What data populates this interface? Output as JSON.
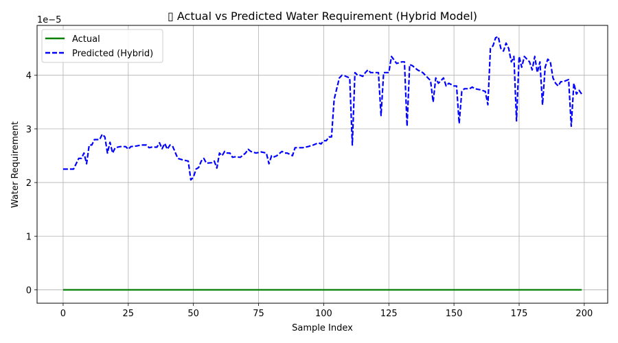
{
  "chart_data": {
    "type": "line",
    "title": "▯ Actual vs Predicted Water Requirement (Hybrid Model)",
    "xlabel": "Sample Index",
    "ylabel": "Water Requirement",
    "y_scale_label": "1e−5",
    "xlim": [
      -10,
      209
    ],
    "ylim": [
      -0.25,
      4.93
    ],
    "x_ticks": [
      0,
      25,
      50,
      75,
      100,
      125,
      150,
      175,
      200
    ],
    "y_ticks": [
      0,
      1,
      2,
      3,
      4
    ],
    "grid": true,
    "legend_position": "top-left",
    "series": [
      {
        "name": "Actual",
        "color": "#008000",
        "style": "solid",
        "x": [
          0,
          199
        ],
        "y": [
          0,
          0
        ]
      },
      {
        "name": "Predicted (Hybrid)",
        "color": "#0000ff",
        "style": "dashed",
        "x": [
          0,
          2,
          4,
          5,
          6,
          7,
          8,
          9,
          10,
          11,
          12,
          13,
          14,
          15,
          16,
          17,
          18,
          19,
          20,
          22,
          24,
          25,
          26,
          28,
          30,
          32,
          33,
          34,
          36,
          37,
          38,
          39,
          40,
          41,
          42,
          44,
          46,
          48,
          49,
          50,
          51,
          52,
          53,
          54,
          55,
          57,
          58,
          59,
          60,
          61,
          62,
          63,
          64,
          65,
          66,
          68,
          70,
          71,
          72,
          74,
          76,
          78,
          79,
          80,
          81,
          82,
          84,
          85,
          86,
          88,
          89,
          90,
          92,
          94,
          96,
          98,
          99,
          100,
          101,
          102,
          103,
          104,
          105,
          106,
          107,
          108,
          110,
          111,
          112,
          113,
          114,
          115,
          116,
          117,
          118,
          119,
          120,
          121,
          122,
          123,
          124,
          125,
          126,
          128,
          130,
          131,
          132,
          133,
          134,
          136,
          138,
          140,
          141,
          142,
          143,
          144,
          145,
          146,
          147,
          148,
          150,
          151,
          152,
          153,
          154,
          155,
          156,
          157,
          158,
          160,
          162,
          163,
          164,
          165,
          166,
          167,
          168,
          169,
          170,
          171,
          172,
          173,
          174,
          175,
          176,
          177,
          178,
          179,
          180,
          181,
          182,
          183,
          184,
          185,
          186,
          187,
          188,
          189,
          190,
          191,
          192,
          193,
          194,
          195,
          196,
          197,
          198,
          199
        ],
        "y": [
          2.25,
          2.25,
          2.25,
          2.35,
          2.45,
          2.45,
          2.55,
          2.35,
          2.7,
          2.7,
          2.8,
          2.8,
          2.8,
          2.9,
          2.85,
          2.55,
          2.75,
          2.55,
          2.65,
          2.67,
          2.67,
          2.62,
          2.67,
          2.68,
          2.7,
          2.7,
          2.65,
          2.66,
          2.66,
          2.74,
          2.63,
          2.73,
          2.62,
          2.7,
          2.68,
          2.45,
          2.42,
          2.4,
          2.05,
          2.1,
          2.25,
          2.28,
          2.4,
          2.45,
          2.36,
          2.37,
          2.4,
          2.27,
          2.55,
          2.5,
          2.58,
          2.55,
          2.55,
          2.47,
          2.48,
          2.47,
          2.55,
          2.62,
          2.58,
          2.55,
          2.57,
          2.55,
          2.35,
          2.5,
          2.48,
          2.5,
          2.58,
          2.55,
          2.55,
          2.5,
          2.65,
          2.65,
          2.65,
          2.67,
          2.7,
          2.74,
          2.72,
          2.78,
          2.78,
          2.85,
          2.85,
          3.55,
          3.75,
          3.95,
          4.0,
          3.99,
          3.95,
          2.7,
          4.05,
          4.0,
          4.0,
          3.98,
          4.05,
          4.1,
          4.05,
          4.05,
          4.05,
          4.05,
          3.25,
          4.05,
          4.05,
          4.05,
          4.35,
          4.22,
          4.25,
          4.25,
          3.05,
          4.2,
          4.18,
          4.1,
          4.05,
          3.95,
          3.9,
          3.5,
          3.95,
          3.85,
          3.9,
          3.95,
          3.8,
          3.85,
          3.8,
          3.8,
          3.1,
          3.7,
          3.75,
          3.75,
          3.75,
          3.78,
          3.75,
          3.73,
          3.7,
          3.45,
          4.5,
          4.55,
          4.7,
          4.72,
          4.5,
          4.45,
          4.6,
          4.5,
          4.25,
          4.35,
          3.15,
          4.35,
          4.15,
          4.35,
          4.3,
          4.25,
          4.1,
          4.35,
          4.05,
          4.25,
          3.45,
          4.15,
          4.3,
          4.25,
          3.95,
          3.85,
          3.8,
          3.88,
          3.88,
          3.9,
          3.92,
          3.05,
          3.85,
          3.65,
          3.72,
          3.65
        ]
      }
    ]
  }
}
